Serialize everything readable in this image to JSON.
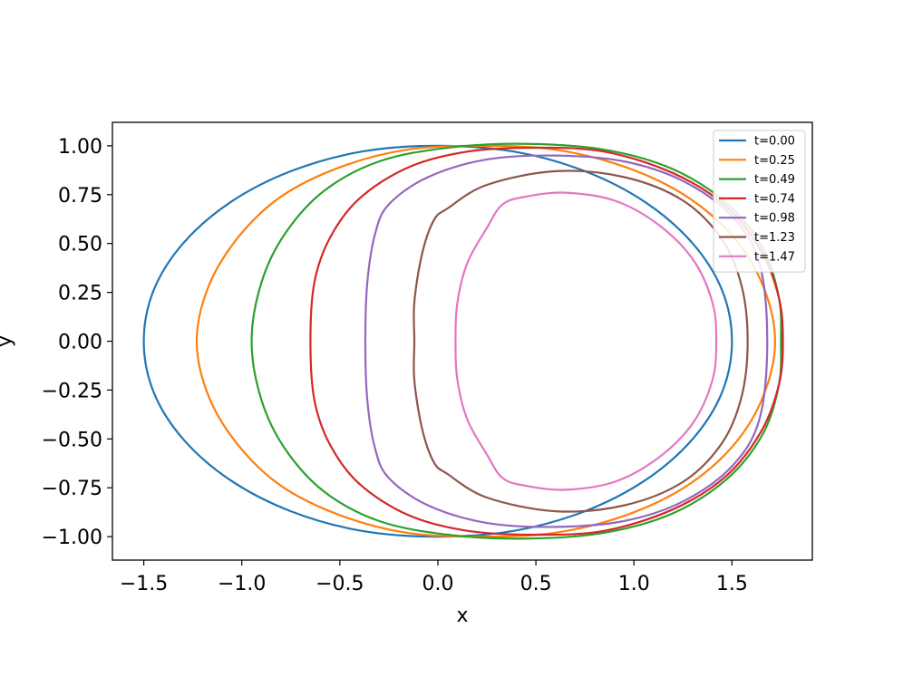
{
  "chart_data": {
    "type": "line",
    "title": "",
    "xlabel": "x",
    "ylabel": "y",
    "xlim": [
      -1.66,
      1.91
    ],
    "ylim": [
      -1.12,
      1.12
    ],
    "xticks": [
      -1.5,
      -1.0,
      -0.5,
      0.0,
      0.5,
      1.0,
      1.5
    ],
    "xtick_labels": [
      "−1.5",
      "−1.0",
      "−0.5",
      "0.0",
      "0.5",
      "1.0",
      "1.5"
    ],
    "yticks": [
      1.0,
      0.75,
      0.5,
      0.25,
      0.0,
      -0.25,
      -0.5,
      -0.75,
      -1.0
    ],
    "ytick_labels": [
      "1.00",
      "0.75",
      "0.50",
      "0.25",
      "0.00",
      "−0.25",
      "−0.50",
      "−0.75",
      "−1.00"
    ],
    "grid": false,
    "legend_position": "top-right",
    "series": [
      {
        "name": "t=0.00",
        "color": "#1f77b4",
        "points": [
          [
            -1.5,
            0
          ],
          [
            -1.45,
            0.26
          ],
          [
            -1.3,
            0.5
          ],
          [
            -1.06,
            0.71
          ],
          [
            -0.75,
            0.87
          ],
          [
            -0.39,
            0.97
          ],
          [
            0,
            1.0
          ],
          [
            0.39,
            0.97
          ],
          [
            0.75,
            0.87
          ],
          [
            1.06,
            0.71
          ],
          [
            1.3,
            0.5
          ],
          [
            1.45,
            0.26
          ],
          [
            1.5,
            0
          ],
          [
            1.45,
            -0.26
          ],
          [
            1.3,
            -0.5
          ],
          [
            1.06,
            -0.71
          ],
          [
            0.75,
            -0.87
          ],
          [
            0.39,
            -0.97
          ],
          [
            0,
            -1.0
          ],
          [
            -0.39,
            -0.97
          ],
          [
            -0.75,
            -0.87
          ],
          [
            -1.06,
            -0.71
          ],
          [
            -1.3,
            -0.5
          ],
          [
            -1.45,
            -0.26
          ]
        ]
      },
      {
        "name": "t=0.25",
        "color": "#ff7f0e",
        "points": [
          [
            -1.23,
            0
          ],
          [
            -1.17,
            0.28
          ],
          [
            -1.02,
            0.53
          ],
          [
            -0.8,
            0.74
          ],
          [
            -0.5,
            0.89
          ],
          [
            -0.16,
            0.98
          ],
          [
            0.22,
            1.0
          ],
          [
            0.6,
            0.98
          ],
          [
            0.96,
            0.89
          ],
          [
            1.27,
            0.74
          ],
          [
            1.51,
            0.53
          ],
          [
            1.66,
            0.28
          ],
          [
            1.72,
            0
          ],
          [
            1.66,
            -0.28
          ],
          [
            1.51,
            -0.53
          ],
          [
            1.27,
            -0.74
          ],
          [
            0.96,
            -0.89
          ],
          [
            0.6,
            -0.98
          ],
          [
            0.22,
            -1.0
          ],
          [
            -0.16,
            -0.98
          ],
          [
            -0.5,
            -0.89
          ],
          [
            -0.8,
            -0.74
          ],
          [
            -1.02,
            -0.53
          ],
          [
            -1.17,
            -0.28
          ]
        ]
      },
      {
        "name": "t=0.49",
        "color": "#2ca02c",
        "points": [
          [
            -0.95,
            0
          ],
          [
            -0.9,
            0.3
          ],
          [
            -0.78,
            0.55
          ],
          [
            -0.58,
            0.77
          ],
          [
            -0.3,
            0.92
          ],
          [
            0.05,
            0.99
          ],
          [
            0.45,
            1.01
          ],
          [
            0.85,
            0.98
          ],
          [
            1.2,
            0.88
          ],
          [
            1.48,
            0.7
          ],
          [
            1.66,
            0.47
          ],
          [
            1.74,
            0.22
          ],
          [
            1.75,
            0
          ],
          [
            1.74,
            -0.22
          ],
          [
            1.66,
            -0.47
          ],
          [
            1.48,
            -0.7
          ],
          [
            1.2,
            -0.88
          ],
          [
            0.85,
            -0.98
          ],
          [
            0.45,
            -1.01
          ],
          [
            0.05,
            -0.99
          ],
          [
            -0.3,
            -0.92
          ],
          [
            -0.58,
            -0.77
          ],
          [
            -0.78,
            -0.55
          ],
          [
            -0.9,
            -0.3
          ]
        ]
      },
      {
        "name": "t=0.74",
        "color": "#d62728",
        "points": [
          [
            -0.65,
            0
          ],
          [
            -0.63,
            0.3
          ],
          [
            -0.55,
            0.53
          ],
          [
            -0.4,
            0.73
          ],
          [
            -0.15,
            0.89
          ],
          [
            0.15,
            0.97
          ],
          [
            0.5,
            0.99
          ],
          [
            0.85,
            0.97
          ],
          [
            1.2,
            0.86
          ],
          [
            1.47,
            0.69
          ],
          [
            1.65,
            0.46
          ],
          [
            1.74,
            0.22
          ],
          [
            1.76,
            0
          ],
          [
            1.74,
            -0.22
          ],
          [
            1.65,
            -0.46
          ],
          [
            1.47,
            -0.69
          ],
          [
            1.2,
            -0.86
          ],
          [
            0.85,
            -0.97
          ],
          [
            0.5,
            -0.99
          ],
          [
            0.15,
            -0.97
          ],
          [
            -0.15,
            -0.89
          ],
          [
            -0.4,
            -0.73
          ],
          [
            -0.55,
            -0.53
          ],
          [
            -0.63,
            -0.3
          ]
        ]
      },
      {
        "name": "t=0.98",
        "color": "#9467bd",
        "points": [
          [
            -0.37,
            0
          ],
          [
            -0.36,
            0.3
          ],
          [
            -0.32,
            0.55
          ],
          [
            -0.25,
            0.7
          ],
          [
            -0.05,
            0.84
          ],
          [
            0.25,
            0.93
          ],
          [
            0.6,
            0.95
          ],
          [
            0.95,
            0.92
          ],
          [
            1.25,
            0.82
          ],
          [
            1.5,
            0.64
          ],
          [
            1.64,
            0.4
          ],
          [
            1.68,
            0
          ],
          [
            1.64,
            -0.4
          ],
          [
            1.5,
            -0.64
          ],
          [
            1.25,
            -0.82
          ],
          [
            0.95,
            -0.92
          ],
          [
            0.6,
            -0.95
          ],
          [
            0.25,
            -0.93
          ],
          [
            -0.05,
            -0.84
          ],
          [
            -0.25,
            -0.7
          ],
          [
            -0.32,
            -0.55
          ],
          [
            -0.36,
            -0.3
          ]
        ]
      },
      {
        "name": "t=1.23",
        "color": "#8c564b",
        "points": [
          [
            -0.12,
            0
          ],
          [
            -0.12,
            0.2
          ],
          [
            -0.08,
            0.45
          ],
          [
            -0.02,
            0.62
          ],
          [
            0.05,
            0.68
          ],
          [
            0.25,
            0.8
          ],
          [
            0.6,
            0.87
          ],
          [
            0.95,
            0.84
          ],
          [
            1.25,
            0.72
          ],
          [
            1.45,
            0.52
          ],
          [
            1.55,
            0.28
          ],
          [
            1.58,
            0
          ],
          [
            1.55,
            -0.28
          ],
          [
            1.45,
            -0.52
          ],
          [
            1.25,
            -0.72
          ],
          [
            0.95,
            -0.84
          ],
          [
            0.6,
            -0.87
          ],
          [
            0.25,
            -0.8
          ],
          [
            0.05,
            -0.68
          ],
          [
            -0.02,
            -0.62
          ],
          [
            -0.08,
            -0.45
          ],
          [
            -0.12,
            -0.2
          ]
        ]
      },
      {
        "name": "t=1.47",
        "color": "#e377c2",
        "points": [
          [
            0.09,
            0
          ],
          [
            0.1,
            0.2
          ],
          [
            0.15,
            0.4
          ],
          [
            0.25,
            0.58
          ],
          [
            0.33,
            0.7
          ],
          [
            0.45,
            0.74
          ],
          [
            0.65,
            0.76
          ],
          [
            0.9,
            0.72
          ],
          [
            1.12,
            0.6
          ],
          [
            1.3,
            0.42
          ],
          [
            1.4,
            0.2
          ],
          [
            1.42,
            0
          ],
          [
            1.4,
            -0.2
          ],
          [
            1.3,
            -0.42
          ],
          [
            1.12,
            -0.6
          ],
          [
            0.9,
            -0.72
          ],
          [
            0.65,
            -0.76
          ],
          [
            0.45,
            -0.74
          ],
          [
            0.33,
            -0.7
          ],
          [
            0.25,
            -0.58
          ],
          [
            0.15,
            -0.4
          ],
          [
            0.1,
            -0.2
          ]
        ]
      }
    ]
  }
}
